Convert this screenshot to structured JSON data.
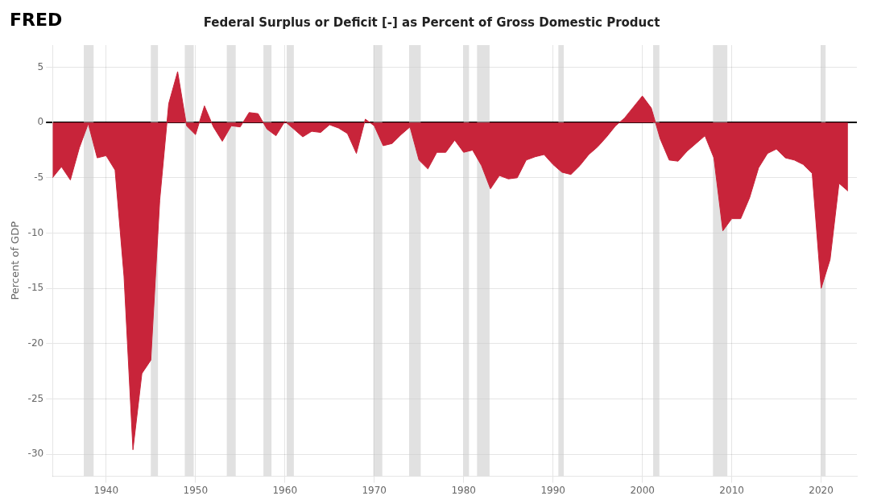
{
  "chart_data": {
    "type": "area",
    "title": "Federal Surplus or Deficit [-] as Percent of Gross Domestic Product",
    "annotations": [
      "FRED"
    ],
    "y_label": "Percent of GDP",
    "color": "#c8243a",
    "grid": true,
    "xlim": [
      1934,
      2024
    ],
    "xticks": [
      1940,
      1950,
      1960,
      1970,
      1980,
      1990,
      2000,
      2010,
      2020
    ],
    "ylim": [
      -32,
      7
    ],
    "yticks": [
      5,
      0,
      -5,
      -10,
      -15,
      -20,
      -25,
      -30
    ],
    "recession_bands": [
      [
        1937.5,
        1938.6
      ],
      [
        1945.0,
        1945.8
      ],
      [
        1948.8,
        1949.8
      ],
      [
        1953.5,
        1954.5
      ],
      [
        1957.6,
        1958.5
      ],
      [
        1960.2,
        1961.0
      ],
      [
        1969.9,
        1970.9
      ],
      [
        1973.9,
        1975.2
      ],
      [
        1980.0,
        1980.6
      ],
      [
        1981.5,
        1982.9
      ],
      [
        1990.6,
        1991.2
      ],
      [
        2001.2,
        2001.9
      ],
      [
        2007.9,
        2009.5
      ],
      [
        2020.0,
        2020.5
      ]
    ],
    "x": [
      1934,
      1935,
      1936,
      1937,
      1938,
      1939,
      1940,
      1941,
      1942,
      1943,
      1944,
      1945,
      1946,
      1947,
      1948,
      1949,
      1950,
      1951,
      1952,
      1953,
      1954,
      1955,
      1956,
      1957,
      1958,
      1959,
      1960,
      1961,
      1962,
      1963,
      1964,
      1965,
      1966,
      1967,
      1968,
      1969,
      1970,
      1971,
      1972,
      1973,
      1974,
      1975,
      1976,
      1977,
      1978,
      1979,
      1980,
      1981,
      1982,
      1983,
      1984,
      1985,
      1986,
      1987,
      1988,
      1989,
      1990,
      1991,
      1992,
      1993,
      1994,
      1995,
      1996,
      1997,
      1998,
      1999,
      2000,
      2001,
      2002,
      2003,
      2004,
      2005,
      2006,
      2007,
      2008,
      2009,
      2010,
      2011,
      2012,
      2013,
      2014,
      2015,
      2016,
      2017,
      2018,
      2019,
      2020,
      2021,
      2022,
      2023
    ],
    "values": [
      -5.0,
      -4.0,
      -5.2,
      -2.3,
      -0.1,
      -3.2,
      -3.0,
      -4.3,
      -13.9,
      -29.6,
      -22.7,
      -21.5,
      -7.0,
      1.7,
      4.6,
      -0.3,
      -1.1,
      1.5,
      -0.4,
      -1.7,
      -0.3,
      -0.4,
      0.9,
      0.8,
      -0.6,
      -1.2,
      0.1,
      -0.6,
      -1.3,
      -0.8,
      -0.9,
      -0.2,
      -0.5,
      -1.0,
      -2.8,
      0.3,
      -0.3,
      -2.1,
      -1.9,
      -1.1,
      -0.4,
      -3.4,
      -4.2,
      -2.7,
      -2.7,
      -1.6,
      -2.7,
      -2.5,
      -3.9,
      -6.0,
      -4.8,
      -5.1,
      -5.0,
      -3.4,
      -3.1,
      -2.9,
      -3.8,
      -4.5,
      -4.7,
      -3.9,
      -2.9,
      -2.2,
      -1.3,
      -0.3,
      0.4,
      1.4,
      2.4,
      1.3,
      -1.5,
      -3.4,
      -3.5,
      -2.6,
      -1.9,
      -1.2,
      -3.2,
      -9.8,
      -8.7,
      -8.7,
      -6.8,
      -4.1,
      -2.8,
      -2.4,
      -3.2,
      -3.4,
      -3.8,
      -4.6,
      -15.0,
      -12.4,
      -5.5,
      -6.2
    ]
  }
}
